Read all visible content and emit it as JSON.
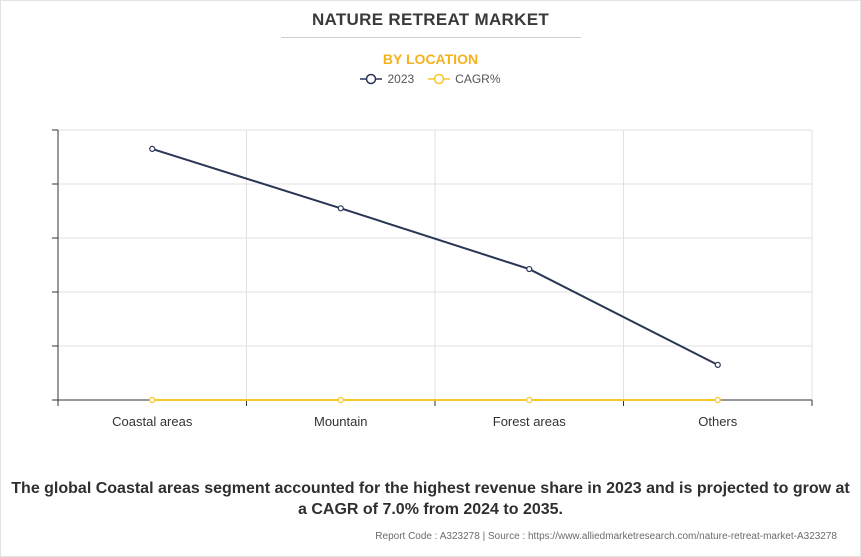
{
  "header": {
    "title": "NATURE RETREAT MARKET",
    "subtitle": "BY LOCATION"
  },
  "colors": {
    "series_2023": "#2b3556",
    "series_cagr": "#f6c82e",
    "subtitle": "#f6b21d",
    "grid": "#e2e2e2"
  },
  "chart_data": {
    "type": "line",
    "title": "NATURE RETREAT MARKET",
    "subtitle": "BY LOCATION",
    "categories": [
      "Coastal areas",
      "Mountain",
      "Forest areas",
      "Others"
    ],
    "series": [
      {
        "name": "2023",
        "values": [
          93,
          71,
          48.5,
          13
        ]
      },
      {
        "name": "CAGR%",
        "values": [
          0,
          0,
          0,
          0
        ]
      }
    ],
    "ylim": [
      0,
      100
    ],
    "y_tick_labels_shown": false,
    "grid": true,
    "legend_position": "top-center"
  },
  "summary": {
    "text": "The global Coastal areas segment accounted for the highest revenue share in 2023 and is projected to grow at a CAGR of 7.0% from 2024 to 2035."
  },
  "footer": {
    "text": "Report Code : A323278  |  Source : https://www.alliedmarketresearch.com/nature-retreat-market-A323278"
  }
}
